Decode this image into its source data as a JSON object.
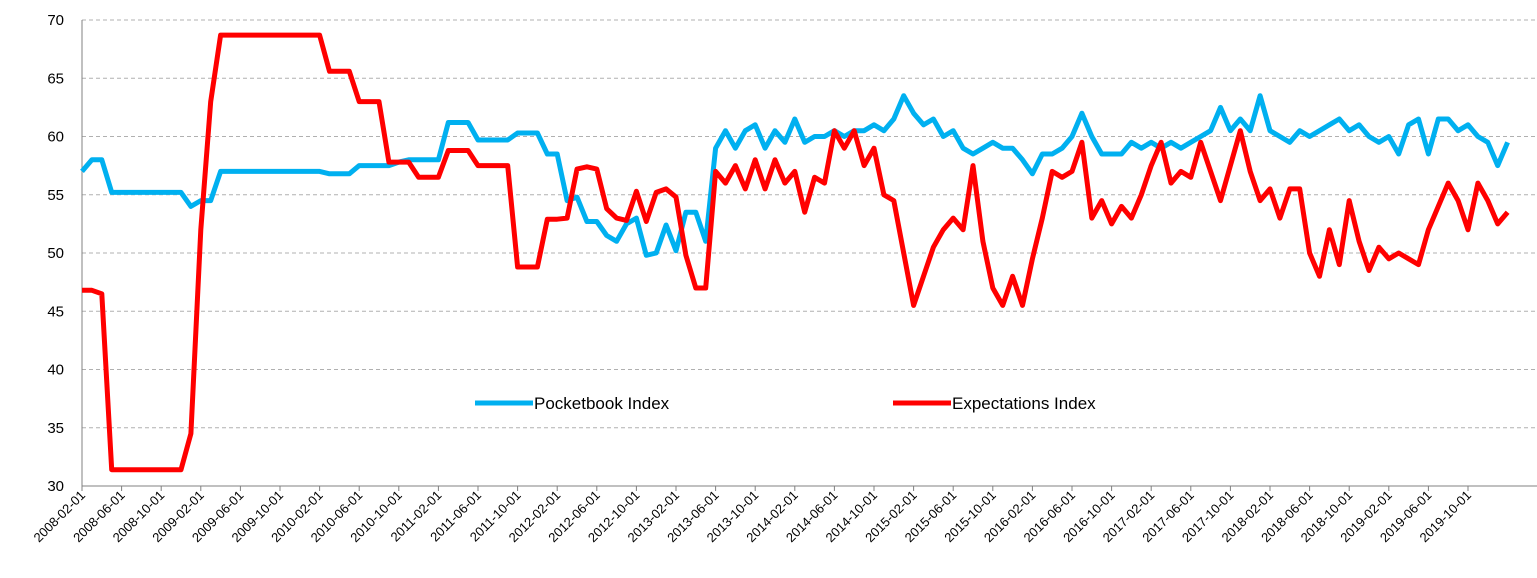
{
  "chart_data": {
    "type": "line",
    "categories": [
      "2008-02-01",
      null,
      null,
      null,
      "2008-06-01",
      null,
      null,
      null,
      "2008-10-01",
      null,
      null,
      null,
      "2009-02-01",
      null,
      null,
      null,
      "2009-06-01",
      null,
      null,
      null,
      "2009-10-01",
      null,
      null,
      null,
      "2010-02-01",
      null,
      null,
      null,
      "2010-06-01",
      null,
      null,
      null,
      "2010-10-01",
      null,
      null,
      null,
      "2011-02-01",
      null,
      null,
      null,
      "2011-06-01",
      null,
      null,
      null,
      "2011-10-01",
      null,
      null,
      null,
      "2012-02-01",
      null,
      null,
      null,
      "2012-06-01",
      null,
      null,
      null,
      "2012-10-01",
      null,
      null,
      null,
      "2013-02-01",
      null,
      null,
      null,
      "2013-06-01",
      null,
      null,
      null,
      "2013-10-01",
      null,
      null,
      null,
      "2014-02-01",
      null,
      null,
      null,
      "2014-06-01",
      null,
      null,
      null,
      "2014-10-01",
      null,
      null,
      null,
      "2015-02-01",
      null,
      null,
      null,
      "2015-06-01",
      null,
      null,
      null,
      "2015-10-01",
      null,
      null,
      null,
      "2016-02-01",
      null,
      null,
      null,
      "2016-06-01",
      null,
      null,
      null,
      "2016-10-01",
      null,
      null,
      null,
      "2017-02-01",
      null,
      null,
      null,
      "2017-06-01",
      null,
      null,
      null,
      "2017-10-01",
      null,
      null,
      null,
      "2018-02-01",
      null,
      null,
      null,
      "2018-06-01",
      null,
      null,
      null,
      "2018-10-01",
      null,
      null,
      null,
      "2019-02-01",
      null,
      null,
      null,
      "2019-06-01",
      null,
      null,
      null,
      "2019-10-01",
      null,
      null,
      null,
      null
    ],
    "series": [
      {
        "name": "Pocketbook Index",
        "color": "#00b0f0",
        "values": [
          57,
          58,
          58,
          55.2,
          55.2,
          55.2,
          55.2,
          55.2,
          55.2,
          55.2,
          55.2,
          54,
          54.5,
          54.5,
          57,
          57,
          57,
          57,
          57,
          57,
          57,
          57,
          57,
          57,
          57,
          56.8,
          56.8,
          56.8,
          57.5,
          57.5,
          57.5,
          57.5,
          57.8,
          58,
          58,
          58,
          58,
          61.2,
          61.2,
          61.2,
          59.7,
          59.7,
          59.7,
          59.7,
          60.3,
          60.3,
          60.3,
          58.5,
          58.5,
          54.5,
          54.8,
          52.7,
          52.7,
          51.5,
          51,
          52.5,
          53,
          49.8,
          50,
          52.4,
          50.2,
          53.5,
          53.5,
          51,
          59,
          60.5,
          59,
          60.5,
          61,
          59,
          60.5,
          59.5,
          61.5,
          59.5,
          60,
          60,
          60.5,
          60,
          60.5,
          60.5,
          61,
          60.5,
          61.5,
          63.5,
          62,
          61,
          61.5,
          60,
          60.5,
          59,
          58.5,
          59,
          59.5,
          59,
          59,
          58,
          56.8,
          58.5,
          58.5,
          59,
          60,
          62,
          60,
          58.5,
          58.5,
          58.5,
          59.5,
          59,
          59.5,
          59,
          59.5,
          59,
          59.5,
          60,
          60.5,
          62.5,
          60.5,
          61.5,
          60.5,
          63.5,
          60.5,
          60,
          59.5,
          60.5,
          60,
          60.5,
          61,
          61.5,
          60.5,
          61,
          60,
          59.5,
          60,
          58.5,
          61,
          61.5,
          58.5,
          61.5,
          61.5,
          60.5,
          61,
          60,
          59.5,
          57.5,
          59.5
        ]
      },
      {
        "name": "Expectations Index",
        "color": "#ff0000",
        "values": [
          46.8,
          46.8,
          46.5,
          31.4,
          31.4,
          31.4,
          31.4,
          31.4,
          31.4,
          31.4,
          31.4,
          34.5,
          52,
          63,
          68.7,
          68.7,
          68.7,
          68.7,
          68.7,
          68.7,
          68.7,
          68.7,
          68.7,
          68.7,
          68.7,
          65.6,
          65.6,
          65.6,
          63,
          63,
          63,
          57.8,
          57.8,
          57.8,
          56.5,
          56.5,
          56.5,
          58.8,
          58.8,
          58.8,
          57.5,
          57.5,
          57.5,
          57.5,
          48.8,
          48.8,
          48.8,
          52.9,
          52.9,
          53,
          57.2,
          57.4,
          57.2,
          53.8,
          53,
          52.8,
          55.3,
          52.7,
          55.2,
          55.5,
          54.8,
          49.8,
          47,
          47,
          57,
          56,
          57.5,
          55.5,
          58,
          55.5,
          58,
          56,
          57,
          53.5,
          56.5,
          56,
          60.5,
          59,
          60.5,
          57.5,
          59,
          55,
          54.5,
          50,
          45.5,
          48,
          50.5,
          52,
          53,
          52,
          57.5,
          51,
          47,
          45.5,
          48,
          45.5,
          49.5,
          53,
          57,
          56.5,
          57,
          59.5,
          53,
          54.5,
          52.5,
          54,
          53,
          55,
          57.5,
          59.5,
          56,
          57,
          56.5,
          59.5,
          57,
          54.5,
          57.5,
          60.5,
          57,
          54.5,
          55.5,
          53,
          55.5,
          55.5,
          50,
          48,
          52,
          49,
          54.5,
          51,
          48.5,
          50.5,
          49.5,
          50,
          49.5,
          49,
          52,
          54,
          56,
          54.5,
          52,
          56,
          54.5,
          52.5,
          53.5
        ]
      }
    ],
    "ylim": [
      30,
      70
    ],
    "yticks": [
      30,
      35,
      40,
      45,
      50,
      55,
      60,
      65,
      70
    ],
    "grid": true
  }
}
